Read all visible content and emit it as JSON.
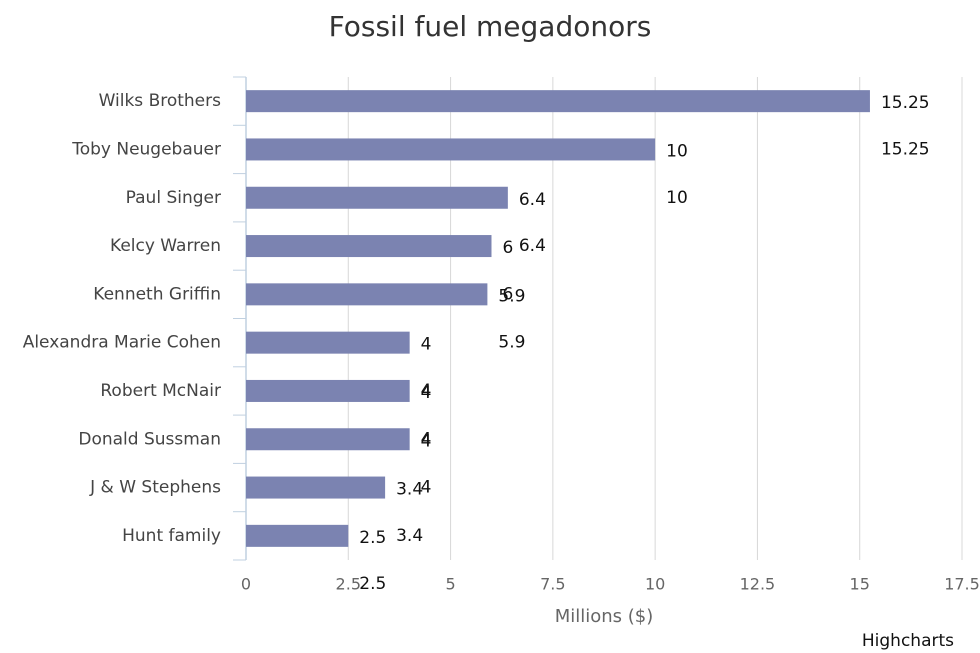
{
  "chart_data": {
    "type": "bar",
    "title": "Fossil fuel megadonors",
    "categories": [
      "Wilks Brothers",
      "Toby Neugebauer",
      "Paul Singer",
      "Kelcy Warren",
      "Kenneth Griffin",
      "Alexandra Marie Cohen",
      "Robert McNair",
      "Donald Sussman",
      "J & W Stephens",
      "Hunt family"
    ],
    "values": [
      15.25,
      10,
      6.4,
      6,
      5.9,
      4,
      4,
      4,
      3.4,
      2.5
    ],
    "color": "#7b83b1",
    "xlabel": "Millions ($)",
    "xlim": [
      0,
      17.5
    ],
    "xticks": [
      0,
      2.5,
      5,
      7.5,
      10,
      12.5,
      15,
      17.5
    ],
    "grid": true,
    "credits": "Highcharts"
  }
}
